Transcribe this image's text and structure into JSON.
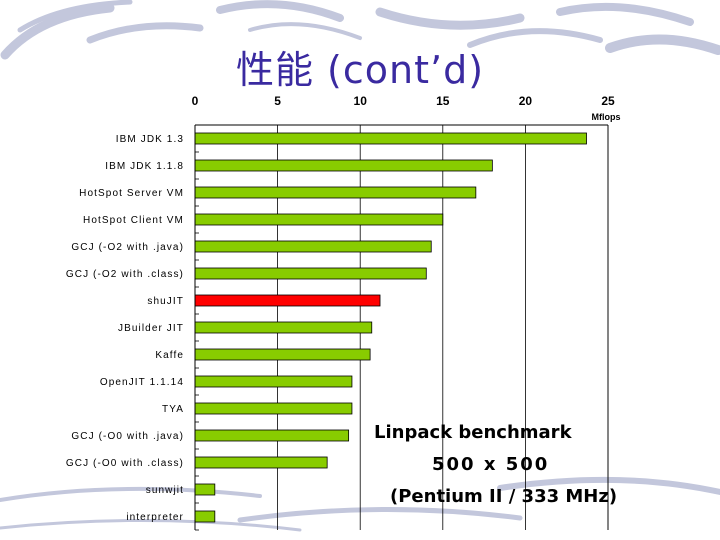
{
  "title": "性能 (cont’d)",
  "colors": {
    "bar": "#88cc00",
    "bar_highlight": "#ff0000",
    "bar_border": "#000000",
    "title": "#3a2aa0",
    "background_swirl": "#c3c7dc"
  },
  "chart_data": {
    "type": "bar",
    "orientation": "horizontal",
    "unit": "Mflops",
    "xlim": [
      0,
      25
    ],
    "x_ticks": [
      0,
      5,
      10,
      15,
      20,
      25
    ],
    "categories": [
      "IBM JDK 1.3",
      "IBM JDK 1.1.8",
      "HotSpot Server VM",
      "HotSpot Client VM",
      "GCJ (-O2 with .java)",
      "GCJ (-O2 with .class)",
      "shuJIT",
      "JBuilder JIT",
      "Kaffe",
      "OpenJIT 1.1.14",
      "TYA",
      "GCJ (-O0 with .java)",
      "GCJ (-O0 with .class)",
      "sunwjit",
      "interpreter"
    ],
    "values": [
      23.7,
      18.0,
      17.0,
      15.0,
      14.3,
      14.0,
      11.2,
      10.7,
      10.6,
      9.5,
      9.5,
      9.3,
      8.0,
      1.2,
      1.2
    ],
    "highlight": "shuJIT",
    "grid": "vertical"
  },
  "annotation": {
    "line1": "Linpack benchmark",
    "line2": "500 x 500",
    "line3": "(Pentium II / 333 MHz)"
  }
}
